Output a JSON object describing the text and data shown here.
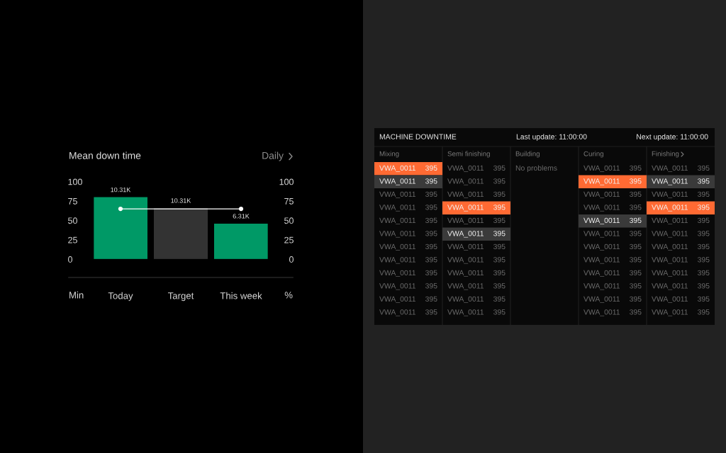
{
  "chart_data": [
    {
      "type": "bar",
      "title": "Mean down time",
      "annotations": [
        "Daily",
        {
          "text": "10.31K",
          "x": "Today",
          "y": 80
        },
        {
          "text": "10.31K",
          "x": "Target",
          "y": 66
        },
        {
          "text": "6.31K",
          "x": "This week",
          "y": 46
        }
      ],
      "categories": [
        "Today",
        "Target",
        "This week"
      ],
      "series": [
        {
          "type": "bar",
          "values": [
            80,
            66,
            46
          ],
          "colors": [
            "#009966",
            "#333333",
            "#009966"
          ]
        },
        {
          "type": "line",
          "x": [
            "Today",
            "This week"
          ],
          "values": [
            65,
            65
          ],
          "color": "#ffffff"
        }
      ],
      "ylim": [
        0,
        100
      ],
      "yticks": [
        0,
        25,
        50,
        75,
        100
      ],
      "y2lim": [
        0,
        100
      ],
      "y2ticks": [
        0,
        25,
        50,
        75,
        100
      ],
      "ylabel": "Min",
      "y2label": "%",
      "marker": "circle",
      "line_style": "solid"
    },
    {
      "type": "other",
      "title": "MACHINE DOWNTIME",
      "annotations": [
        "Last update: 11:00:00",
        "Next update: 11:00:00"
      ],
      "categories": [
        "Mixing",
        "Semi finishing",
        "Building",
        "Curing",
        "Finishing"
      ],
      "cell_labels": [
        [
          "VWA_0011",
          "395",
          "VWA_0011",
          "395",
          "No problems",
          null,
          "VWA_0011",
          "395",
          "VWA_0011",
          "395"
        ],
        [
          "VWA_0011",
          "395",
          "VWA_0011",
          "395",
          null,
          null,
          "VWA_0011",
          "395",
          "VWA_0011",
          "395"
        ],
        [
          "VWA_0011",
          "395",
          "VWA_0011",
          "395",
          null,
          null,
          "VWA_0011",
          "395",
          "VWA_0011",
          "395"
        ],
        [
          "VWA_0011",
          "395",
          "VWA_0011",
          "395",
          null,
          null,
          "VWA_0011",
          "395",
          "VWA_0011",
          "395"
        ],
        [
          "VWA_0011",
          "395",
          "VWA_0011",
          "395",
          null,
          null,
          "VWA_0011",
          "395",
          "VWA_0011",
          "395"
        ],
        [
          "VWA_0011",
          "395",
          "VWA_0011",
          "395",
          null,
          null,
          "VWA_0011",
          "395",
          "VWA_0011",
          "395"
        ],
        [
          "VWA_0011",
          "395",
          "VWA_0011",
          "395",
          null,
          null,
          "VWA_0011",
          "395",
          "VWA_0011",
          "395"
        ],
        [
          "VWA_0011",
          "395",
          "VWA_0011",
          "395",
          null,
          null,
          "VWA_0011",
          "395",
          "VWA_0011",
          "395"
        ],
        [
          "VWA_0011",
          "395",
          "VWA_0011",
          "395",
          null,
          null,
          "VWA_0011",
          "395",
          "VWA_0011",
          "395"
        ],
        [
          "VWA_0011",
          "395",
          "VWA_0011",
          "395",
          null,
          null,
          "VWA_0011",
          "395",
          "VWA_0011",
          "395"
        ],
        [
          "VWA_0011",
          "395",
          "VWA_0011",
          "395",
          null,
          null,
          "VWA_0011",
          "395",
          "VWA_0011",
          "395"
        ],
        [
          "VWA_0011",
          "395",
          "VWA_0011",
          "395",
          null,
          null,
          "VWA_0011",
          "395",
          "VWA_0011",
          "395"
        ]
      ],
      "colors": [
        [
          "#ff6a33",
          null,
          null,
          null,
          null
        ],
        [
          "#3a3a3a",
          null,
          null,
          "#ff6a33",
          "#3a3a3a"
        ],
        [
          null,
          null,
          null,
          null,
          null
        ],
        [
          null,
          "#ff6a33",
          null,
          null,
          "#ff6a33"
        ],
        [
          null,
          null,
          null,
          "#3a3a3a",
          null
        ],
        [
          null,
          "#3a3a3a",
          null,
          null,
          null
        ],
        [
          null,
          null,
          null,
          null,
          null
        ],
        [
          null,
          null,
          null,
          null,
          null
        ],
        [
          null,
          null,
          null,
          null,
          null
        ],
        [
          null,
          null,
          null,
          null,
          null
        ],
        [
          null,
          null,
          null,
          null,
          null
        ],
        [
          null,
          null,
          null,
          null,
          null
        ]
      ]
    }
  ]
}
